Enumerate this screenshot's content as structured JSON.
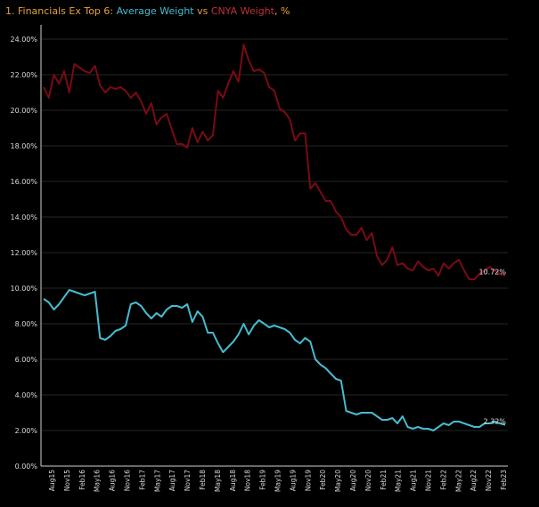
{
  "colors": {
    "background": "#000000",
    "title_text": "#e6a23c",
    "average_weight": "#45bcd0",
    "cnya_weight": "#7a0a14",
    "grid": "#262626",
    "axis": "#cfcfcf",
    "tick_text": "#d9d9d9",
    "end_label": "#e6e6e6"
  },
  "chart_data": {
    "type": "line",
    "title_parts": {
      "prefix": "1. Financials Ex Top 6:",
      "series1": "Average Weight",
      "vs": "vs",
      "series2": "CNYA Weight",
      "suffix": ", %"
    },
    "xlabel": "",
    "ylabel": "",
    "ylim": [
      0,
      24.8
    ],
    "y_ticks": [
      0,
      2,
      4,
      6,
      8,
      10,
      12,
      14,
      16,
      18,
      20,
      22,
      24
    ],
    "y_tick_labels": [
      "0.00%",
      "2.00%",
      "4.00%",
      "6.00%",
      "8.00%",
      "10.00%",
      "12.00%",
      "14.00%",
      "16.00%",
      "18.00%",
      "20.00%",
      "22.00%",
      "24.00%"
    ],
    "x_tick_labels": [
      "Aug15",
      "Nov15",
      "Feb16",
      "May16",
      "Aug16",
      "Nov16",
      "Feb17",
      "May17",
      "Aug17",
      "Nov17",
      "Feb18",
      "May18",
      "Aug18",
      "Nov18",
      "Feb19",
      "May19",
      "Aug19",
      "Nov19",
      "Feb20",
      "May20",
      "Aug20",
      "Nov20",
      "Feb21",
      "May21",
      "Aug21",
      "Nov21",
      "Feb22",
      "May22",
      "Aug22",
      "Nov22",
      "Feb23"
    ],
    "grid": true,
    "series": [
      {
        "name": "CNYA Weight",
        "color": "#7a0a14",
        "end_label": "10.72%",
        "values": [
          21.3,
          20.7,
          22.0,
          21.5,
          22.2,
          21.0,
          22.6,
          22.4,
          22.2,
          22.1,
          22.5,
          21.4,
          21.0,
          21.3,
          21.2,
          21.3,
          21.1,
          20.7,
          21.0,
          20.5,
          19.8,
          20.4,
          19.2,
          19.6,
          19.8,
          18.9,
          18.1,
          18.1,
          17.9,
          19.0,
          18.2,
          18.8,
          18.3,
          18.6,
          21.1,
          20.7,
          21.5,
          22.2,
          21.6,
          23.7,
          22.8,
          22.2,
          22.3,
          22.1,
          21.3,
          21.1,
          20.1,
          19.9,
          19.5,
          18.3,
          18.7,
          18.7,
          15.6,
          15.9,
          15.4,
          14.9,
          14.9,
          14.3,
          14.0,
          13.3,
          13.0,
          13.0,
          13.4,
          12.7,
          13.1,
          11.8,
          11.3,
          11.6,
          12.3,
          11.3,
          11.4,
          11.1,
          11.0,
          11.5,
          11.2,
          11.0,
          11.1,
          10.7,
          11.4,
          11.1,
          11.4,
          11.6,
          11.0,
          10.5,
          10.5,
          10.8,
          11.0,
          11.2,
          11.0,
          10.8,
          10.72
        ]
      },
      {
        "name": "Average Weight",
        "color": "#45bcd0",
        "end_label": "2.32%",
        "values": [
          9.4,
          9.2,
          8.8,
          9.1,
          9.5,
          9.9,
          9.8,
          9.7,
          9.6,
          9.7,
          9.8,
          7.2,
          7.1,
          7.3,
          7.6,
          7.7,
          7.9,
          9.1,
          9.2,
          9.0,
          8.6,
          8.3,
          8.6,
          8.4,
          8.8,
          9.0,
          9.0,
          8.9,
          9.1,
          8.1,
          8.7,
          8.4,
          7.5,
          7.5,
          6.9,
          6.4,
          6.7,
          7.0,
          7.4,
          8.0,
          7.4,
          7.9,
          8.2,
          8.0,
          7.8,
          7.9,
          7.8,
          7.7,
          7.5,
          7.1,
          6.9,
          7.2,
          7.0,
          6.0,
          5.7,
          5.5,
          5.2,
          4.9,
          4.8,
          3.1,
          3.0,
          2.9,
          3.0,
          3.0,
          3.0,
          2.8,
          2.6,
          2.6,
          2.7,
          2.4,
          2.8,
          2.2,
          2.1,
          2.2,
          2.1,
          2.1,
          2.0,
          2.2,
          2.4,
          2.3,
          2.5,
          2.5,
          2.4,
          2.3,
          2.2,
          2.2,
          2.4,
          2.4,
          2.5,
          2.4,
          2.32
        ]
      }
    ]
  }
}
